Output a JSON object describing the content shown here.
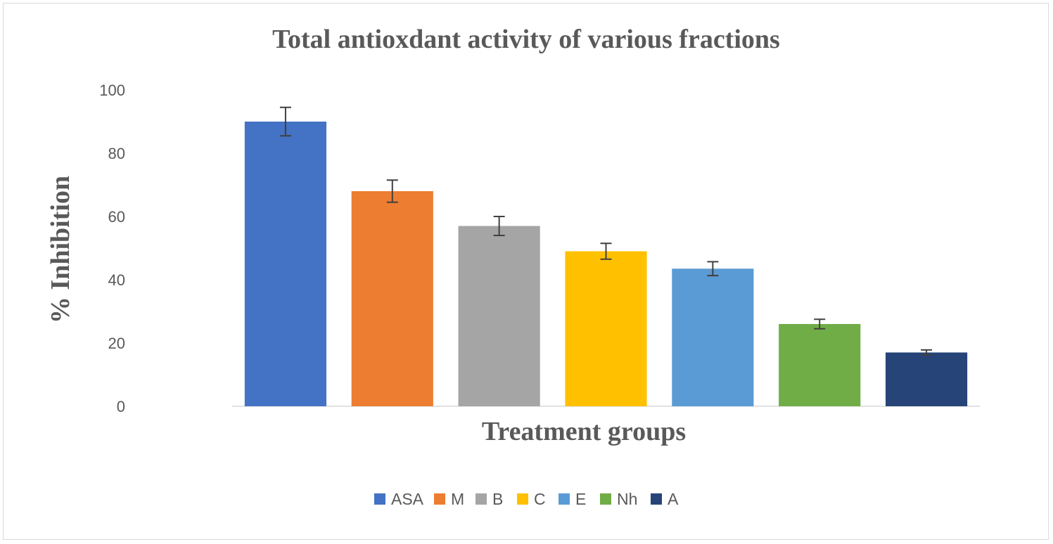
{
  "chart_data": {
    "type": "bar",
    "title": "Total antioxdant activity of various fractions",
    "xlabel": "Treatment groups",
    "ylabel": "% Inhibition",
    "categories": [
      "ASA",
      "M",
      "B",
      "C",
      "E",
      "Nh",
      "A"
    ],
    "values": [
      90,
      68,
      57,
      49,
      43.5,
      26,
      17
    ],
    "errors": [
      4.5,
      3.5,
      3,
      2.5,
      2.2,
      1.5,
      0.8
    ],
    "colors": [
      "#4472c4",
      "#ed7d31",
      "#a5a5a5",
      "#ffc000",
      "#5b9bd5",
      "#70ad47",
      "#264478"
    ],
    "ylim": [
      0,
      100
    ],
    "yticks": [
      "0",
      "20",
      "40",
      "60",
      "80",
      "100"
    ],
    "grid": false,
    "legend": "bottom",
    "error_color": "#404040"
  }
}
